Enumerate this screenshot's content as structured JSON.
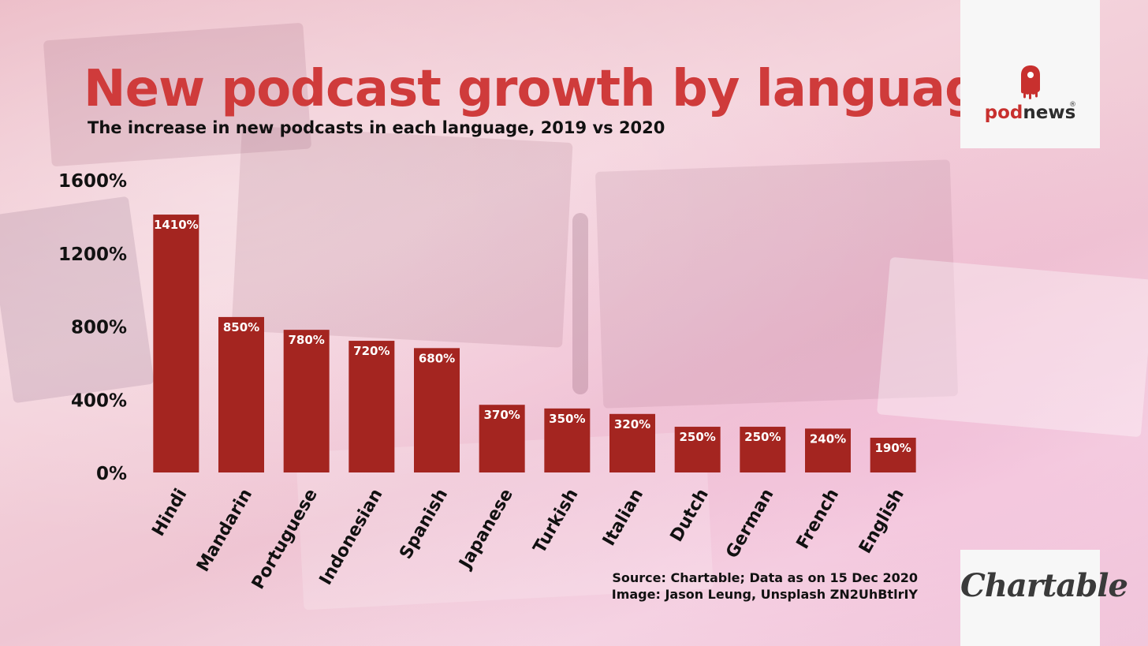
{
  "header": {
    "title": "New podcast growth by language",
    "subtitle": "The increase in new podcasts in each language, 2019 vs 2020"
  },
  "footer": {
    "source_line": "Source: Chartable; Data as on 15 Dec 2020",
    "image_line": "Image: Jason Leung, Unsplash ZN2UhBtlrIY"
  },
  "logos": {
    "podnews_pod": "pod",
    "podnews_news": "news",
    "podnews_reg": "®",
    "chartable": "Chartable"
  },
  "colors": {
    "bar": "#a42520",
    "title": "#cf3b3b",
    "podnews_red": "#c8302e"
  },
  "chart_data": {
    "type": "bar",
    "title": "New podcast growth by language",
    "subtitle": "The increase in new podcasts in each language, 2019 vs 2020",
    "xlabel": "",
    "ylabel": "",
    "ylim": [
      0,
      1600
    ],
    "yticks": [
      0,
      400,
      800,
      1200,
      1600
    ],
    "ytick_labels": [
      "0%",
      "400%",
      "800%",
      "1200%",
      "1600%"
    ],
    "grid": false,
    "categories": [
      "Hindi",
      "Mandarin",
      "Portuguese",
      "Indonesian",
      "Spanish",
      "Japanese",
      "Turkish",
      "Italian",
      "Dutch",
      "German",
      "French",
      "English"
    ],
    "values": [
      1410,
      850,
      780,
      720,
      680,
      370,
      350,
      320,
      250,
      250,
      240,
      190
    ],
    "value_labels": [
      "1410%",
      "850%",
      "780%",
      "720%",
      "680%",
      "370%",
      "350%",
      "320%",
      "250%",
      "250%",
      "240%",
      "190%"
    ]
  }
}
